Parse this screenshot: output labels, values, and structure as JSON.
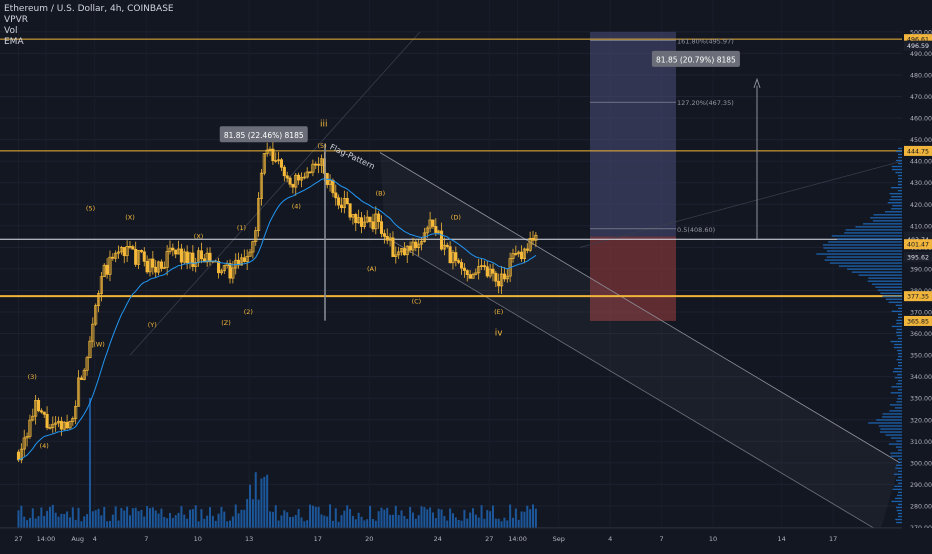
{
  "legend": {
    "symbol": "Ethereum / U.S. Dollar, 4h, COINBASE",
    "indicators": [
      "VPVR",
      "Vol",
      "EMA"
    ]
  },
  "colors": {
    "background": "#131722",
    "candle": "#f5b93a",
    "ema": "#2196f3",
    "level_line": "#f0b53a",
    "volume": "#1e5ea8",
    "profile": "#1e6fc4",
    "target_zone": "#4a4f7a",
    "stop_zone": "#7a3438",
    "label_bg": "#6b6e78"
  },
  "chart_data": {
    "type": "candlestick",
    "ylim": [
      270,
      500
    ],
    "y_ticks": [
      270,
      280,
      290,
      300,
      310,
      320,
      330,
      340,
      350,
      360,
      370,
      380,
      390,
      400,
      410,
      420,
      430,
      440,
      450,
      460,
      470,
      480,
      490,
      500
    ],
    "x_ticks": [
      {
        "label": "27",
        "day": 0
      },
      {
        "label": "14:00",
        "day": 1.6
      },
      {
        "label": "Aug",
        "day": 3.45
      },
      {
        "label": "4",
        "day": 4.45
      },
      {
        "label": "7",
        "day": 7.45
      },
      {
        "label": "10",
        "day": 10.45
      },
      {
        "label": "13",
        "day": 13.45
      },
      {
        "label": "17",
        "day": 17.45
      },
      {
        "label": "20",
        "day": 20.45
      },
      {
        "label": "24",
        "day": 24.45
      },
      {
        "label": "27",
        "day": 27.45
      },
      {
        "label": "14:00",
        "day": 29.1
      },
      {
        "label": "Sep",
        "day": 31.5
      },
      {
        "label": "4",
        "day": 34.5
      },
      {
        "label": "7",
        "day": 37.5
      },
      {
        "label": "10",
        "day": 40.5
      },
      {
        "label": "14",
        "day": 44.5
      },
      {
        "label": "17",
        "day": 47.5
      }
    ],
    "price_path": [
      [
        0.0,
        305
      ],
      [
        1.0,
        325
      ],
      [
        2.0,
        315
      ],
      [
        3.0,
        318
      ],
      [
        3.6,
        340
      ],
      [
        4.0,
        350
      ],
      [
        4.4,
        372
      ],
      [
        5.0,
        388
      ],
      [
        6.0,
        400
      ],
      [
        7.0,
        395
      ],
      [
        8.0,
        390
      ],
      [
        9.0,
        398
      ],
      [
        10.0,
        395
      ],
      [
        11.0,
        394
      ],
      [
        12.0,
        388
      ],
      [
        13.0,
        392
      ],
      [
        13.8,
        405
      ],
      [
        14.3,
        444
      ],
      [
        15.0,
        440
      ],
      [
        16.0,
        430
      ],
      [
        17.0,
        432
      ],
      [
        17.5,
        442
      ],
      [
        18.0,
        430
      ],
      [
        19.0,
        420
      ],
      [
        20.0,
        412
      ],
      [
        21.0,
        412
      ],
      [
        22.0,
        395
      ],
      [
        23.0,
        400
      ],
      [
        24.0,
        410
      ],
      [
        25.0,
        398
      ],
      [
        26.0,
        388
      ],
      [
        27.0,
        392
      ],
      [
        28.0,
        385
      ],
      [
        29.0,
        395
      ],
      [
        30.0,
        405
      ]
    ],
    "levels": [
      {
        "price": 496.61,
        "label": "496.61"
      },
      {
        "price": 444.75,
        "label": "444.75"
      },
      {
        "price": 377.35,
        "label": "377.35"
      }
    ],
    "reference_line": {
      "price": 403.74,
      "label": "403.74"
    },
    "right_axis_labels": [
      {
        "price": 496.61,
        "label": "496.61",
        "color": "#f0b53a"
      },
      {
        "price": 493.59,
        "label": "496.59",
        "color": "#1b1e2b"
      },
      {
        "price": 444.75,
        "label": "444.75",
        "color": "#f0b53a"
      },
      {
        "price": 405.06,
        "label": "405.06",
        "color": "#1b1e2b"
      },
      {
        "price": 403.74,
        "label": "403.74",
        "color": "#1b1e2b"
      },
      {
        "price": 401.47,
        "label": "401.47",
        "color": "#f0b53a"
      },
      {
        "price": 395.62,
        "label": "395.62",
        "color": "#1b1e2b"
      },
      {
        "price": 377.35,
        "label": "377.35",
        "color": "#f0b53a"
      },
      {
        "price": 365.85,
        "label": "365.85",
        "color": "#f0b53a"
      }
    ],
    "fib_levels": [
      {
        "label": "161.80%(495.97)",
        "price": 495.97
      },
      {
        "label": "127.20%(467.35)",
        "price": 467.35
      },
      {
        "label": "0.5(408.60)",
        "price": 408.6
      }
    ],
    "measure_boxes": [
      {
        "label": "81.85 (22.46%) 8185",
        "day": 14.3,
        "price": 452
      },
      {
        "label": "81.85 (20.79%) 8185",
        "day": 39.5,
        "price": 487
      }
    ],
    "annotations": [
      {
        "text": "(3)",
        "day": 0.8,
        "price": 339
      },
      {
        "text": "(4)",
        "day": 1.5,
        "price": 307
      },
      {
        "text": "(5)",
        "day": 4.2,
        "price": 417
      },
      {
        "text": "(W)",
        "day": 4.7,
        "price": 354
      },
      {
        "text": "(X)",
        "day": 6.5,
        "price": 413
      },
      {
        "text": "(Y)",
        "day": 7.8,
        "price": 363
      },
      {
        "text": "(X)",
        "day": 10.5,
        "price": 404
      },
      {
        "text": "(Z)",
        "day": 12.1,
        "price": 364
      },
      {
        "text": "(1)",
        "day": 13.0,
        "price": 408
      },
      {
        "text": "(2)",
        "day": 13.4,
        "price": 369
      },
      {
        "text": "iii",
        "day": 17.8,
        "price": 456
      },
      {
        "text": "(5)",
        "day": 17.7,
        "price": 446
      },
      {
        "text": "(4)",
        "day": 16.2,
        "price": 418
      },
      {
        "text": "(B)",
        "day": 21.1,
        "price": 424
      },
      {
        "text": "(A)",
        "day": 20.6,
        "price": 389
      },
      {
        "text": "(C)",
        "day": 23.2,
        "price": 374
      },
      {
        "text": "(D)",
        "day": 25.5,
        "price": 413
      },
      {
        "text": "(E)",
        "day": 28.0,
        "price": 369
      },
      {
        "text": "iv",
        "day": 28.0,
        "price": 359
      },
      {
        "text": "Flag-Pattern",
        "day": 19.4,
        "price": 441
      }
    ]
  }
}
